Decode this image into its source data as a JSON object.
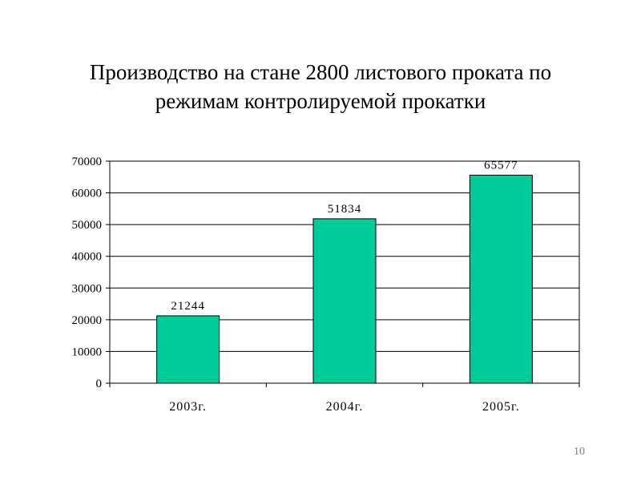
{
  "slide": {
    "title_line1": "Производство на стане 2800 листового проката по",
    "title_line2": "режимам контролируемой прокатки",
    "page_number": "10"
  },
  "colors": {
    "bar_fill": "#00cc99",
    "bar_stroke": "#000000",
    "gridline": "#000000"
  },
  "chart_data": {
    "type": "bar",
    "title": "",
    "xlabel": "",
    "ylabel": "",
    "categories": [
      "2003г.",
      "2004г.",
      "2005г."
    ],
    "values": [
      21244,
      51834,
      65577
    ],
    "data_labels": [
      "21244",
      "51834",
      "65577"
    ],
    "ylim": [
      0,
      70000
    ],
    "yticks": [
      0,
      10000,
      20000,
      30000,
      40000,
      50000,
      60000,
      70000
    ],
    "ytick_labels": [
      "0",
      "10000",
      "20000",
      "30000",
      "40000",
      "50000",
      "60000",
      "70000"
    ],
    "grid": true,
    "legend": "none"
  }
}
